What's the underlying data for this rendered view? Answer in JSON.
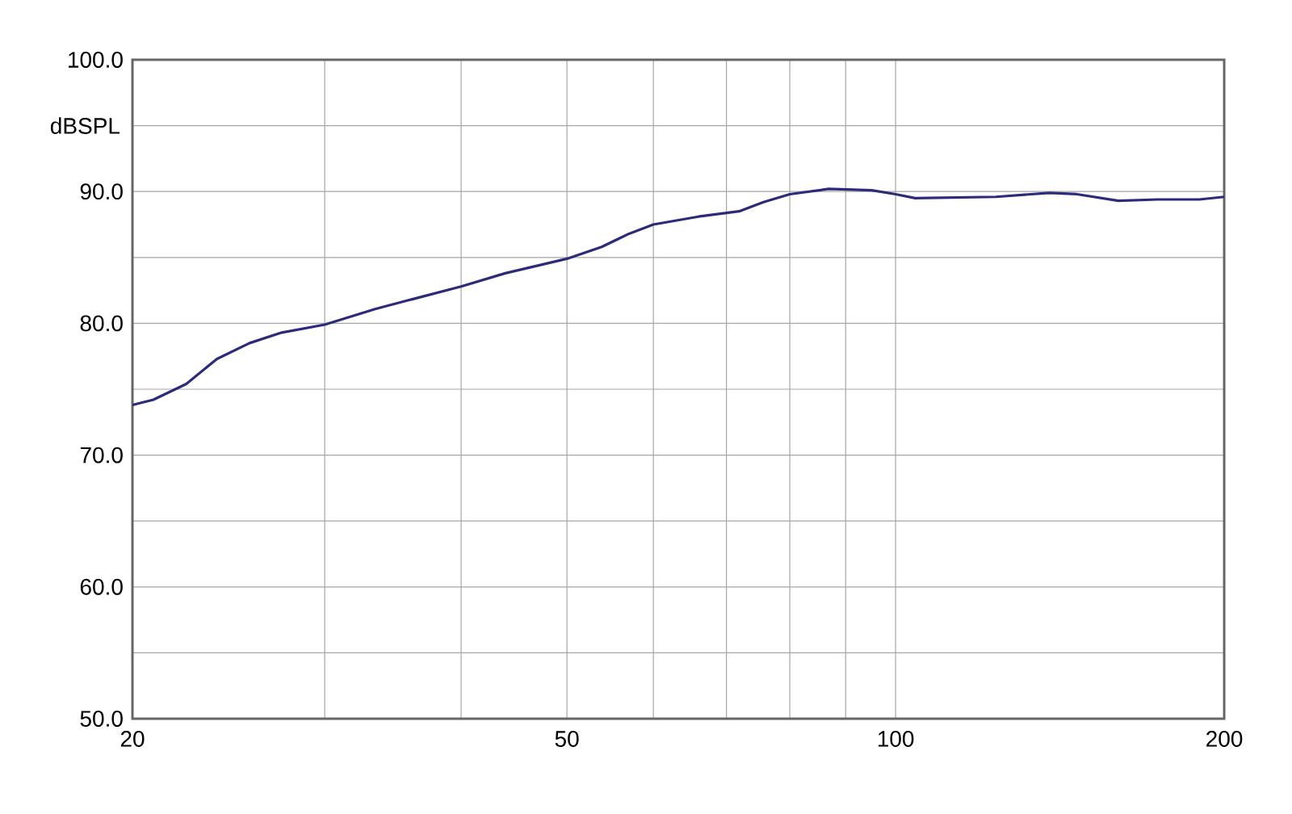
{
  "chart_data": {
    "type": "line",
    "ylabel": "dBSPL",
    "log": "x",
    "grid": true,
    "xlim": [
      20,
      200
    ],
    "ylim": [
      50,
      100
    ],
    "xticks": [
      20,
      {
        "value": 30,
        "label": null
      },
      {
        "value": 40,
        "label": null
      },
      50,
      {
        "value": 60,
        "label": null
      },
      {
        "value": 70,
        "label": null
      },
      {
        "value": 80,
        "label": null
      },
      {
        "value": 90,
        "label": null
      },
      100,
      200
    ],
    "yticks": [
      {
        "value": 50,
        "label": "50.0"
      },
      {
        "value": 55,
        "label": null
      },
      {
        "value": 60,
        "label": "60.0"
      },
      {
        "value": 65,
        "label": null
      },
      {
        "value": 70,
        "label": "70.0"
      },
      {
        "value": 75,
        "label": null
      },
      {
        "value": 80,
        "label": "80.0"
      },
      {
        "value": 85,
        "label": null
      },
      {
        "value": 90,
        "label": "90.0"
      },
      {
        "value": 95,
        "label": null
      },
      {
        "value": 100,
        "label": "100.0"
      }
    ],
    "series": [
      {
        "color": "#2b2b7a",
        "x": [
          20,
          20.2,
          20.9,
          22.4,
          23.9,
          25.6,
          27.4,
          30,
          33.4,
          40,
          43.9,
          50,
          53.8,
          57,
          60,
          66,
          71.9,
          75.7,
          80,
          86.8,
          95.1,
          100,
          104.2,
          123.6,
          138.3,
          146.6,
          160,
          173.8,
          189.8,
          200
        ],
        "values": [
          73.8,
          73.9,
          74.2,
          75.4,
          77.3,
          78.5,
          79.3,
          79.9,
          81.1,
          82.8,
          83.8,
          84.9,
          85.8,
          86.8,
          87.5,
          88.1,
          88.5,
          89.2,
          89.8,
          90.2,
          90.1,
          89.8,
          89.5,
          89.6,
          89.9,
          89.8,
          89.3,
          89.4,
          89.4,
          89.6
        ]
      }
    ]
  }
}
